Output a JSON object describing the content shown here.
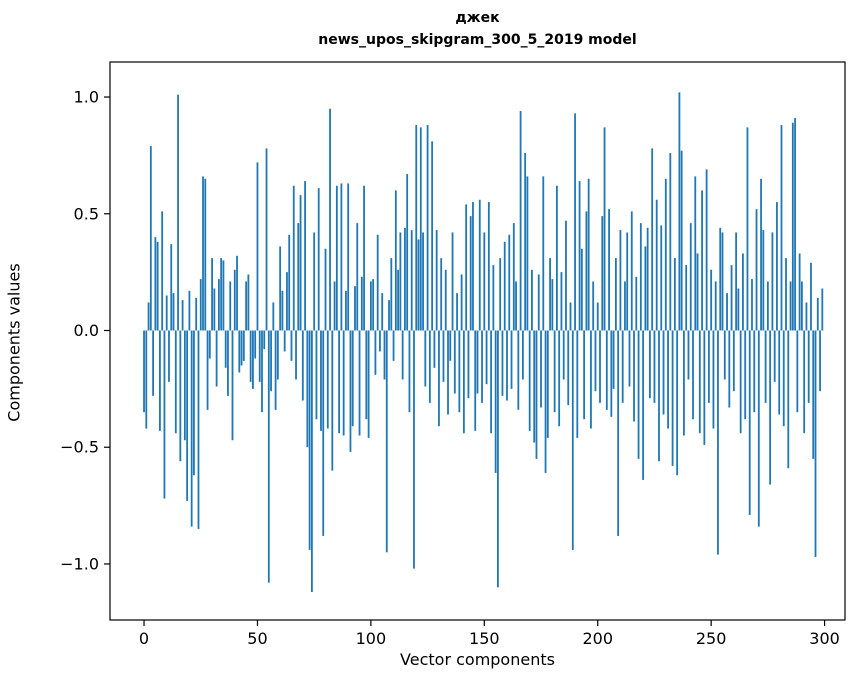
{
  "figure": {
    "title_line1": "джек",
    "title_line2": "news_upos_skipgram_300_5_2019 model",
    "xlabel": "Vector components",
    "ylabel": "Components values"
  },
  "chart_data": {
    "type": "bar",
    "title": "джек — news_upos_skipgram_300_5_2019 model",
    "xlabel": "Vector components",
    "ylabel": "Components values",
    "bar_color": "#1f77b4",
    "axis_color": "#000000",
    "xlim": [
      -15,
      309
    ],
    "ylim": [
      -1.24,
      1.15
    ],
    "xticks": [
      0,
      50,
      100,
      150,
      200,
      250,
      300
    ],
    "xtick_labels": [
      "0",
      "50",
      "100",
      "150",
      "200",
      "250",
      "300"
    ],
    "yticks": [
      -1.0,
      -0.5,
      0.0,
      0.5,
      1.0
    ],
    "ytick_labels": [
      "−1.0",
      "−0.5",
      "0.0",
      "0.5",
      "1.0"
    ],
    "grid": false,
    "legend": "none",
    "x_start": 0,
    "values": [
      -0.35,
      -0.42,
      0.12,
      0.79,
      -0.28,
      0.4,
      0.38,
      -0.43,
      0.51,
      -0.72,
      0.15,
      -0.22,
      0.37,
      0.16,
      -0.44,
      1.01,
      -0.56,
      0.13,
      -0.47,
      -0.73,
      0.17,
      -0.84,
      -0.62,
      0.14,
      -0.85,
      0.22,
      0.66,
      0.65,
      -0.34,
      -0.12,
      0.31,
      0.18,
      -0.24,
      0.22,
      0.31,
      0.3,
      -0.16,
      -0.28,
      0.21,
      -0.47,
      0.26,
      0.32,
      -0.18,
      -0.15,
      -0.13,
      0.21,
      0.24,
      -0.22,
      -0.25,
      -0.12,
      0.72,
      -0.22,
      -0.35,
      -0.08,
      0.78,
      -1.08,
      -0.26,
      0.12,
      -0.34,
      -0.21,
      0.36,
      0.17,
      -0.09,
      0.25,
      0.41,
      -0.13,
      0.62,
      -0.21,
      0.46,
      0.58,
      -0.3,
      0.64,
      -0.5,
      -0.94,
      -1.12,
      0.42,
      -0.38,
      0.61,
      -0.43,
      -0.88,
      0.35,
      -0.42,
      0.95,
      -0.6,
      0.21,
      0.62,
      -0.44,
      0.63,
      -0.45,
      0.17,
      0.63,
      -0.52,
      -0.41,
      0.19,
      0.46,
      -0.45,
      0.23,
      0.62,
      -0.38,
      -0.46,
      0.21,
      0.22,
      -0.19,
      0.41,
      -0.09,
      0.16,
      -0.21,
      -0.95,
      0.13,
      0.31,
      -0.13,
      0.6,
      0.26,
      0.42,
      -0.21,
      0.44,
      0.67,
      -0.35,
      0.43,
      -1.02,
      0.88,
      0.39,
      0.87,
      0.42,
      -0.24,
      0.88,
      -0.31,
      0.81,
      -0.16,
      0.43,
      -0.41,
      0.31,
      -0.22,
      0.26,
      -0.36,
      -0.13,
      0.42,
      -0.27,
      0.16,
      -0.35,
      0.24,
      -0.44,
      0.54,
      -0.29,
      0.49,
      0.55,
      -0.43,
      -0.27,
      0.56,
      -0.31,
      0.42,
      -0.23,
      0.55,
      -0.44,
      0.28,
      -0.61,
      -1.1,
      0.31,
      -0.28,
      0.38,
      -0.3,
      0.41,
      -0.25,
      0.46,
      0.21,
      -0.34,
      0.94,
      -0.21,
      0.76,
      0.66,
      -0.43,
      0.26,
      -0.48,
      -0.55,
      0.24,
      -0.33,
      0.66,
      -0.61,
      -0.46,
      0.31,
      0.22,
      -0.35,
      0.62,
      -0.41,
      0.25,
      -0.21,
      0.47,
      -0.32,
      0.12,
      -0.94,
      0.93,
      -0.46,
      0.64,
      0.35,
      -0.38,
      0.51,
      0.65,
      -0.42,
      0.21,
      -0.26,
      0.12,
      -0.31,
      0.49,
      0.87,
      -0.34,
      0.52,
      -0.37,
      -0.25,
      0.31,
      -0.88,
      0.43,
      -0.31,
      0.21,
      0.42,
      -0.24,
      0.51,
      -0.39,
      0.23,
      -0.55,
      0.46,
      -0.64,
      0.36,
      0.44,
      -0.29,
      0.78,
      -0.31,
      0.56,
      -0.56,
      0.45,
      -0.36,
      0.65,
      -0.42,
      0.76,
      -0.58,
      0.31,
      -0.62,
      1.02,
      0.77,
      -0.45,
      0.28,
      -0.21,
      0.46,
      -0.38,
      0.66,
      0.33,
      -0.44,
      0.6,
      -0.49,
      0.69,
      -0.31,
      0.26,
      -0.42,
      0.21,
      -0.96,
      0.44,
      0.42,
      -0.21,
      0.16,
      -0.33,
      0.28,
      -0.26,
      0.42,
      0.18,
      -0.44,
      0.33,
      -0.38,
      0.87,
      -0.79,
      0.22,
      -0.35,
      0.52,
      -0.84,
      0.65,
      0.43,
      -0.31,
      0.21,
      -0.66,
      0.42,
      -0.22,
      0.55,
      -0.36,
      0.88,
      -0.41,
      0.31,
      -0.59,
      0.21,
      0.89,
      0.91,
      -0.35,
      0.33,
      0.21,
      -0.44,
      0.12,
      -0.31,
      0.29,
      -0.55,
      -0.97,
      0.14,
      -0.26,
      0.18
    ]
  }
}
